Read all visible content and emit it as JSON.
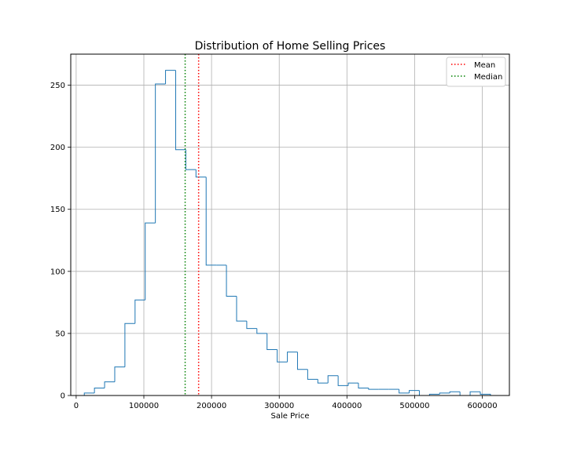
{
  "chart_data": {
    "type": "histogram",
    "title": "Distribution of Home Selling Prices",
    "xlabel": "Sale Price",
    "ylabel": "",
    "xlim": [
      -8000,
      640000
    ],
    "ylim": [
      0,
      275
    ],
    "xticks": [
      0,
      100000,
      200000,
      300000,
      400000,
      500000,
      600000
    ],
    "yticks": [
      0,
      50,
      100,
      150,
      200,
      250
    ],
    "grid": true,
    "legend_position": "top-right",
    "bin_edges": [
      12000,
      27000,
      42000,
      57000,
      72000,
      87000,
      102000,
      117000,
      132000,
      147000,
      162000,
      177000,
      192000,
      207000,
      222000,
      237000,
      252000,
      267000,
      282000,
      297000,
      312000,
      327000,
      342000,
      357000,
      372000,
      387000,
      402000,
      417000,
      432000,
      447000,
      462000,
      477000,
      492000,
      507000,
      522000,
      537000,
      552000,
      567000,
      582000,
      597000,
      612000
    ],
    "counts": [
      2,
      6,
      11,
      23,
      58,
      77,
      139,
      251,
      262,
      198,
      182,
      176,
      105,
      105,
      80,
      60,
      54,
      50,
      37,
      27,
      35,
      21,
      13,
      10,
      16,
      8,
      10,
      6,
      5,
      5,
      5,
      2,
      4,
      0,
      1,
      2,
      3,
      0,
      3,
      1
    ],
    "series_color": "#1f77b4",
    "mean": 180900,
    "median": 161000,
    "mean_label": "Mean",
    "median_label": "Median",
    "mean_color": "#ff0000",
    "median_color": "#008000"
  }
}
